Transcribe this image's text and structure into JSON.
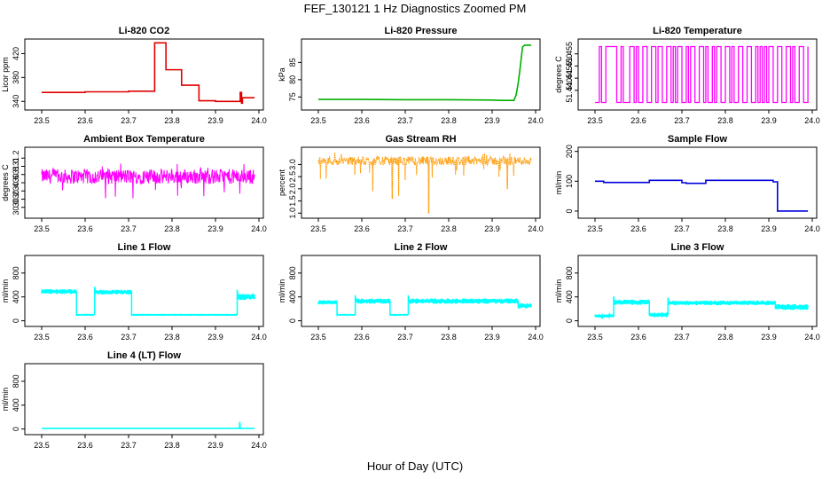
{
  "title": "FEF_130121  1 Hz Diagnostics Zoomed PM",
  "xlabel": "Hour of Day (UTC)",
  "colors": {
    "co2": "#e00000",
    "pressure": "#00b000",
    "temp": "#ff00ff",
    "rh": "#ff9900",
    "flow": "#0000dd",
    "line": "#00ffff"
  },
  "chart_data": [
    {
      "type": "line",
      "title": "Li-820 CO2",
      "ylabel": "Licor ppm",
      "xlim": [
        23.5,
        24.0
      ],
      "ylim": [
        330,
        440
      ],
      "yticks": [
        "340",
        "380",
        "420"
      ],
      "yvals": [
        340,
        380,
        420
      ],
      "xticks": [
        "23.5",
        "23.6",
        "23.7",
        "23.8",
        "23.9",
        "24.0"
      ],
      "color": "#e00000",
      "series": [
        {
          "x": [
            23.5,
            23.55,
            23.6,
            23.65,
            23.7,
            23.745,
            23.75,
            23.76,
            23.785,
            23.786,
            23.82,
            23.822,
            23.86,
            23.862,
            23.9,
            23.92,
            23.955,
            23.957,
            23.96,
            23.962,
            23.99
          ],
          "values": [
            355,
            355,
            356,
            356,
            357,
            357,
            357,
            438,
            438,
            393,
            393,
            367,
            367,
            341,
            340,
            340,
            340,
            355,
            337,
            346,
            346
          ]
        }
      ]
    },
    {
      "type": "line",
      "title": "Li-820 Pressure",
      "ylabel": "kPa",
      "xlim": [
        23.5,
        24.0
      ],
      "ylim": [
        72,
        91
      ],
      "yticks": [
        "75",
        "80",
        "85"
      ],
      "yvals": [
        75,
        80,
        85
      ],
      "xticks": [
        "23.5",
        "23.6",
        "23.7",
        "23.8",
        "23.9",
        "24.0"
      ],
      "color": "#00b000",
      "series": [
        {
          "x": [
            23.5,
            23.6,
            23.7,
            23.8,
            23.9,
            23.92,
            23.95,
            23.955,
            23.96,
            23.965,
            23.97,
            23.975,
            23.99
          ],
          "values": [
            74.3,
            74.3,
            74.2,
            74.2,
            74.1,
            74.0,
            74.0,
            75.5,
            79,
            84,
            89.5,
            90,
            90
          ]
        }
      ]
    },
    {
      "type": "line",
      "title": "Li-820 Temperature",
      "ylabel": "degrees C",
      "xlim": [
        23.5,
        24.0
      ],
      "ylim": [
        51.433,
        51.46
      ],
      "yticks": [
        "51.440",
        "51.445",
        "51.450",
        "51.455"
      ],
      "yvals": [
        51.44,
        51.445,
        51.45,
        51.455
      ],
      "xticks": [
        "23.5",
        "23.6",
        "23.7",
        "23.8",
        "23.9",
        "24.0"
      ],
      "color": "#ff00ff",
      "style": "binary",
      "low": 51.435,
      "high": 51.458,
      "switches": [
        23.51,
        23.515,
        23.525,
        23.55,
        23.56,
        23.565,
        23.58,
        23.59,
        23.595,
        23.6,
        23.61,
        23.62,
        23.63,
        23.64,
        23.645,
        23.655,
        23.665,
        23.675,
        23.68,
        23.685,
        23.69,
        23.7,
        23.71,
        23.715,
        23.72,
        23.73,
        23.74,
        23.75,
        23.755,
        23.76,
        23.77,
        23.775,
        23.78,
        23.79,
        23.8,
        23.81,
        23.815,
        23.82,
        23.83,
        23.84,
        23.85,
        23.86,
        23.87,
        23.875,
        23.88,
        23.885,
        23.89,
        23.895,
        23.9,
        23.91,
        23.92,
        23.93,
        23.94,
        23.95,
        23.955,
        23.96,
        23.97,
        23.98,
        23.99
      ]
    },
    {
      "type": "line",
      "title": "Ambient Box Temperature",
      "ylabel": "degrees C",
      "xlim": [
        23.5,
        24.0
      ],
      "ylim": [
        29.8,
        31.4
      ],
      "yticks": [
        "30.0",
        "30.2",
        "30.4",
        "30.6",
        "30.8",
        "31.0",
        "31.2"
      ],
      "yvals": [
        30.0,
        30.2,
        30.4,
        30.6,
        30.8,
        31.0,
        31.2
      ],
      "xticks": [
        "23.5",
        "23.6",
        "23.7",
        "23.8",
        "23.9",
        "24.0"
      ],
      "color": "#ff00ff",
      "style": "noise",
      "center": 30.75,
      "amp": 0.18,
      "spike": 0.55
    },
    {
      "type": "line",
      "title": "Gas Stream RH",
      "ylabel": "percent",
      "xlim": [
        23.5,
        24.0
      ],
      "ylim": [
        0.9,
        3.6
      ],
      "yticks": [
        "1.0",
        "1.5",
        "2.0",
        "2.5",
        "3.0"
      ],
      "yvals": [
        1.0,
        1.5,
        2.0,
        2.5,
        3.0
      ],
      "xticks": [
        "23.5",
        "23.6",
        "23.7",
        "23.8",
        "23.9",
        "24.0"
      ],
      "color": "#ff9900",
      "style": "noise",
      "center": 3.15,
      "amp": 0.18,
      "spike": 0.8,
      "dips": [
        {
          "x": 23.625,
          "y": 1.9
        },
        {
          "x": 23.67,
          "y": 1.6
        },
        {
          "x": 23.685,
          "y": 1.7
        },
        {
          "x": 23.754,
          "y": 1.0
        },
        {
          "x": 23.935,
          "y": 2.0
        }
      ]
    },
    {
      "type": "line",
      "title": "Sample Flow",
      "ylabel": "ml/min",
      "xlim": [
        23.5,
        24.0
      ],
      "ylim": [
        -15,
        205
      ],
      "yticks": [
        "0",
        "100",
        "200"
      ],
      "yvals": [
        0,
        100,
        200
      ],
      "xticks": [
        "23.5",
        "23.6",
        "23.7",
        "23.8",
        "23.9",
        "24.0"
      ],
      "color": "#0000dd",
      "series": [
        {
          "x": [
            23.5,
            23.52,
            23.62,
            23.625,
            23.7,
            23.71,
            23.75,
            23.755,
            23.91,
            23.915,
            23.92,
            23.99
          ],
          "values": [
            100,
            96,
            96,
            103,
            95,
            93,
            93,
            103,
            98,
            98,
            0,
            0
          ]
        }
      ]
    },
    {
      "type": "line",
      "title": "Line 1 Flow",
      "ylabel": "ml/min",
      "xlim": [
        23.5,
        24.0
      ],
      "ylim": [
        -50,
        1050
      ],
      "yticks": [
        "0",
        "400",
        "800"
      ],
      "yvals": [
        0,
        400,
        800
      ],
      "xticks": [
        "23.5",
        "23.6",
        "23.7",
        "23.8",
        "23.9",
        "24.0"
      ],
      "color": "#00ffff",
      "style": "segments",
      "segs": [
        {
          "x0": 23.5,
          "x1": 23.58,
          "v": 490,
          "amp": 40
        },
        {
          "x0": 23.58,
          "x1": 23.622,
          "v": 100,
          "amp": 5
        },
        {
          "x0": 23.622,
          "x1": 23.707,
          "v": 480,
          "amp": 40
        },
        {
          "x0": 23.707,
          "x1": 23.95,
          "v": 100,
          "amp": 5
        },
        {
          "x0": 23.95,
          "x1": 23.99,
          "v": 400,
          "amp": 55
        }
      ]
    },
    {
      "type": "line",
      "title": "Line 2 Flow",
      "ylabel": "ml/min",
      "xlim": [
        23.5,
        24.0
      ],
      "ylim": [
        -50,
        1050
      ],
      "yticks": [
        "0",
        "400",
        "800"
      ],
      "yvals": [
        0,
        400,
        800
      ],
      "xticks": [
        "23.5",
        "23.6",
        "23.7",
        "23.8",
        "23.9",
        "24.0"
      ],
      "color": "#00ffff",
      "style": "segments",
      "segs": [
        {
          "x0": 23.5,
          "x1": 23.543,
          "v": 310,
          "amp": 35
        },
        {
          "x0": 23.543,
          "x1": 23.585,
          "v": 100,
          "amp": 5
        },
        {
          "x0": 23.585,
          "x1": 23.665,
          "v": 330,
          "amp": 45
        },
        {
          "x0": 23.665,
          "x1": 23.707,
          "v": 100,
          "amp": 5
        },
        {
          "x0": 23.707,
          "x1": 23.96,
          "v": 330,
          "amp": 45
        },
        {
          "x0": 23.96,
          "x1": 23.99,
          "v": 250,
          "amp": 45
        }
      ]
    },
    {
      "type": "line",
      "title": "Line 3 Flow",
      "ylabel": "ml/min",
      "xlim": [
        23.5,
        24.0
      ],
      "ylim": [
        -50,
        1050
      ],
      "yticks": [
        "0",
        "400",
        "800"
      ],
      "yvals": [
        0,
        400,
        800
      ],
      "xticks": [
        "23.5",
        "23.6",
        "23.7",
        "23.8",
        "23.9",
        "24.0"
      ],
      "color": "#00ffff",
      "style": "segments",
      "segs": [
        {
          "x0": 23.5,
          "x1": 23.543,
          "v": 80,
          "amp": 30
        },
        {
          "x0": 23.543,
          "x1": 23.625,
          "v": 310,
          "amp": 45
        },
        {
          "x0": 23.625,
          "x1": 23.668,
          "v": 100,
          "amp": 15
        },
        {
          "x0": 23.668,
          "x1": 23.915,
          "v": 300,
          "amp": 40
        },
        {
          "x0": 23.915,
          "x1": 23.99,
          "v": 230,
          "amp": 50
        }
      ]
    },
    {
      "type": "line",
      "title": "Line 4 (LT) Flow",
      "ylabel": "ml/min",
      "xlim": [
        23.5,
        24.0
      ],
      "ylim": [
        -50,
        1050
      ],
      "yticks": [
        "0",
        "400",
        "800"
      ],
      "yvals": [
        0,
        400,
        800
      ],
      "xticks": [
        "23.5",
        "23.6",
        "23.7",
        "23.8",
        "23.9",
        "24.0"
      ],
      "color": "#00ffff",
      "series": [
        {
          "x": [
            23.5,
            23.955,
            23.956,
            23.957,
            23.958,
            23.99
          ],
          "values": [
            10,
            10,
            120,
            15,
            10,
            10
          ]
        }
      ]
    }
  ]
}
